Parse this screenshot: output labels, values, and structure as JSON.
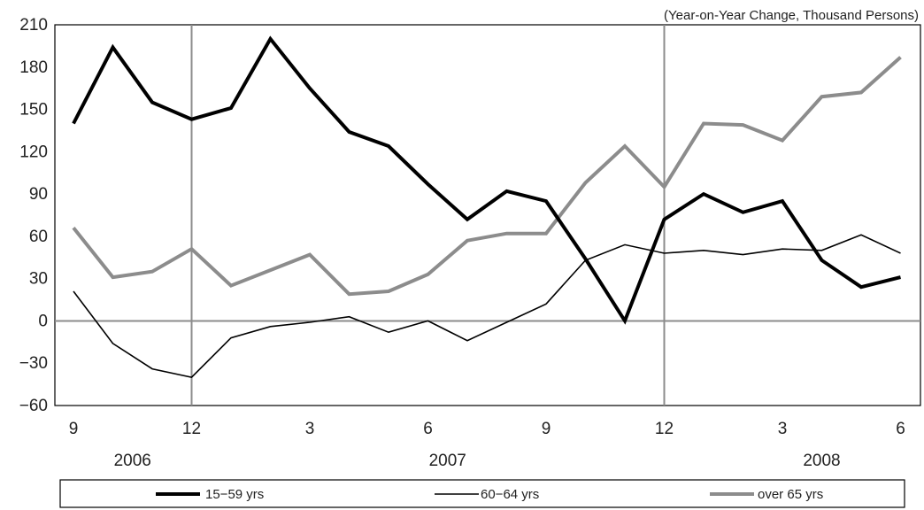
{
  "chart_data": {
    "type": "line",
    "unit_note": "(Year-on-Year Change, Thousand Persons)",
    "x_tick_labels": [
      "9",
      "12",
      "3",
      "6",
      "9",
      "12",
      "3",
      "6"
    ],
    "year_labels": [
      "2006",
      "2007",
      "2008"
    ],
    "ylim": [
      -60,
      210
    ],
    "y_ticks": [
      210,
      180,
      150,
      120,
      90,
      60,
      30,
      0,
      -30,
      -60
    ],
    "x": [
      "2006-09",
      "2006-10",
      "2006-11",
      "2006-12",
      "2007-01",
      "2007-02",
      "2007-03",
      "2007-04",
      "2007-05",
      "2007-06",
      "2007-07",
      "2007-08",
      "2007-09",
      "2007-10",
      "2007-11",
      "2007-12",
      "2008-01",
      "2008-02",
      "2008-03",
      "2008-04",
      "2008-05",
      "2008-06"
    ],
    "series": [
      {
        "name": "15−59 yrs",
        "color": "#000000",
        "values": [
          140,
          194,
          155,
          143,
          151,
          200,
          165,
          134,
          124,
          97,
          72,
          92,
          85,
          44,
          0,
          72,
          90,
          77,
          85,
          43,
          24,
          31
        ]
      },
      {
        "name": "60−64 yrs",
        "color": "#000000",
        "values": [
          21,
          -16,
          -34,
          -40,
          -12,
          -4,
          -1,
          3,
          -8,
          0,
          -14,
          -1,
          12,
          43,
          54,
          48,
          50,
          47,
          51,
          50,
          61,
          48
        ]
      },
      {
        "name": "over 65 yrs",
        "color": "#8c8c8c",
        "values": [
          66,
          31,
          35,
          51,
          25,
          36,
          47,
          19,
          21,
          33,
          57,
          62,
          62,
          98,
          124,
          95,
          140,
          139,
          128,
          159,
          162,
          187
        ]
      }
    ],
    "grid": false,
    "legend_position": "bottom"
  }
}
